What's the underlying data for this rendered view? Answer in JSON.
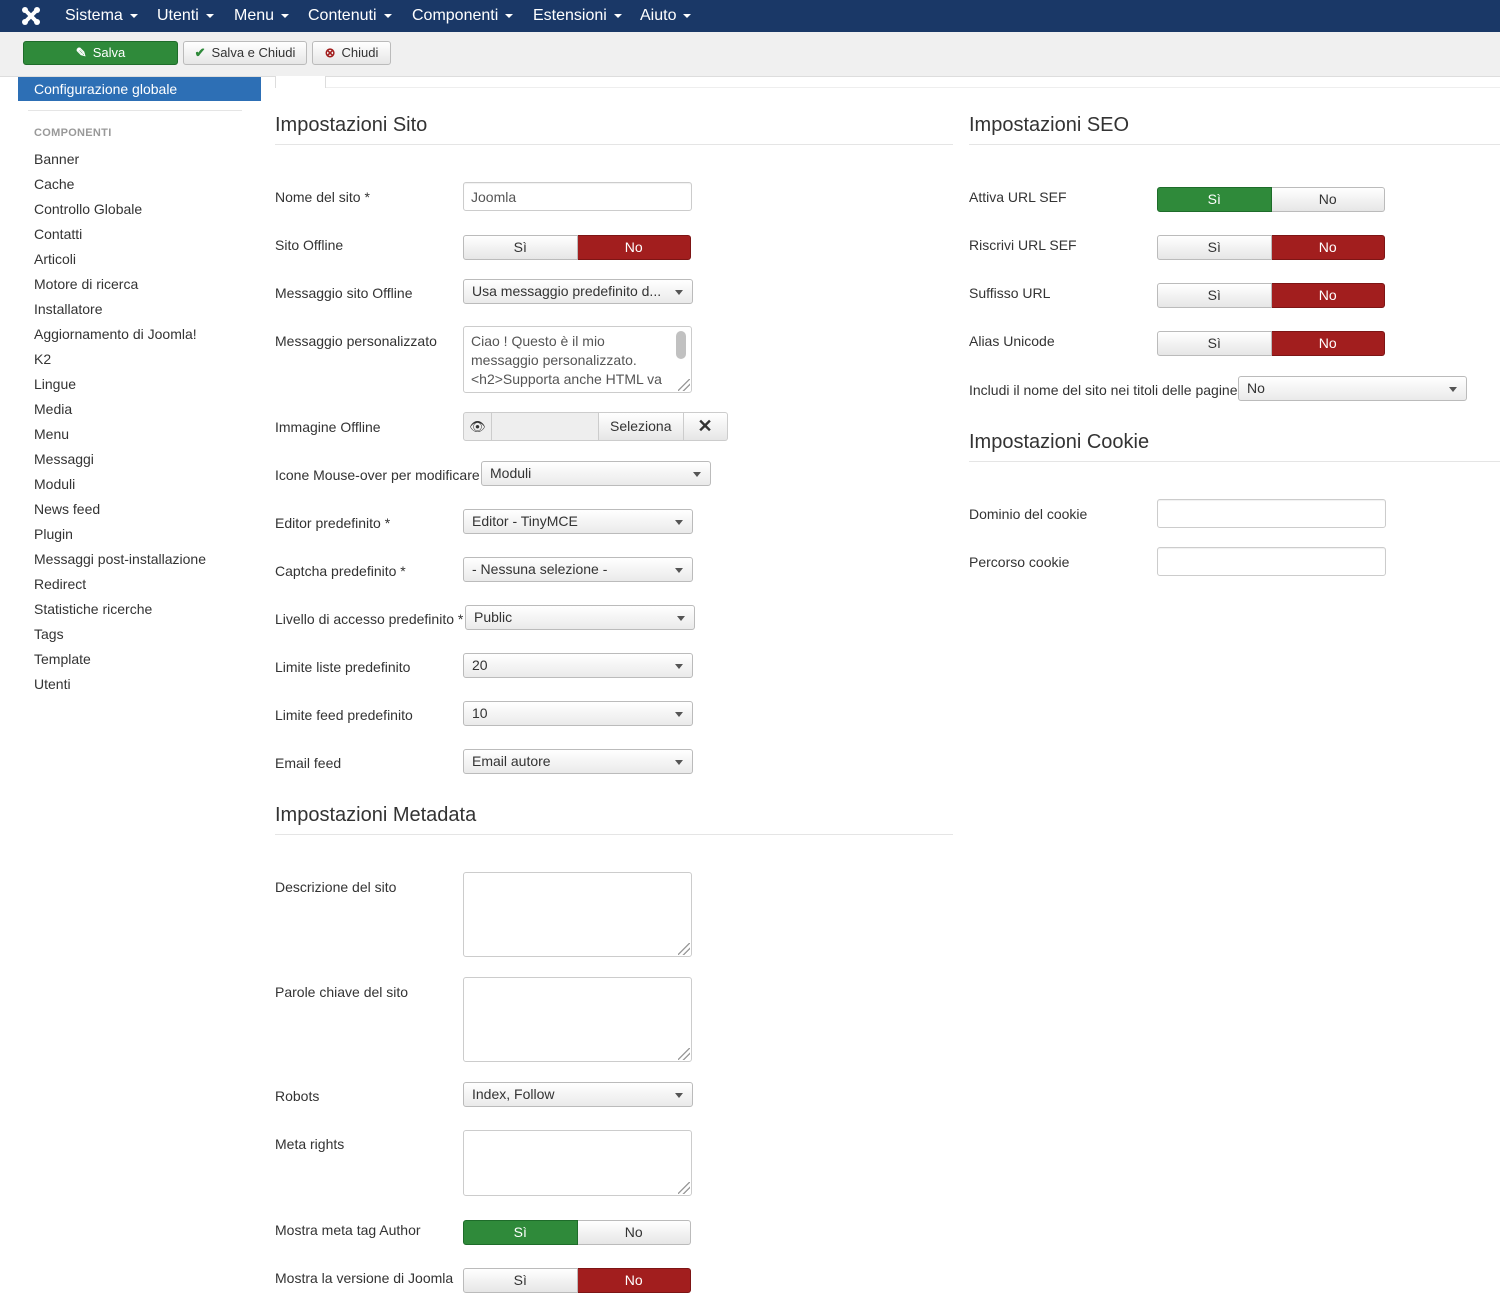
{
  "nav": {
    "logo_icon": "joomla-logo-icon",
    "menus": [
      "Sistema",
      "Utenti",
      "Menu",
      "Contenuti",
      "Componenti",
      "Estensioni",
      "Aiuto"
    ]
  },
  "toolbar": {
    "save_label": "Salva",
    "save_close_label": "Salva e Chiudi",
    "close_label": "Chiudi"
  },
  "sidebar": {
    "active": "Configurazione globale",
    "header": "COMPONENTI",
    "items": [
      "Banner",
      "Cache",
      "Controllo Globale",
      "Contatti",
      "Articoli",
      "Motore di ricerca",
      "Installatore",
      "Aggiornamento di Joomla!",
      "K2",
      "Lingue",
      "Media",
      "Menu",
      "Messaggi",
      "Moduli",
      "News feed",
      "Plugin",
      "Messaggi post-installazione",
      "Redirect",
      "Statistiche ricerche",
      "Tags",
      "Template",
      "Utenti"
    ]
  },
  "site": {
    "title": "Impostazioni Sito",
    "site_name_label": "Nome del sito *",
    "site_name_value": "Joomla",
    "offline_label": "Sito Offline",
    "offline_value": "No",
    "offline_msg_label": "Messaggio sito Offline",
    "offline_msg_value": "Usa messaggio predefinito d...",
    "custom_msg_label": "Messaggio personalizzato",
    "custom_msg_value": "Ciao ! Questo è il mio messaggio personalizzato. <h2>Supporta anche HTML va",
    "offline_image_label": "Immagine Offline",
    "select_label": "Seleziona",
    "mouseover_label": "Icone Mouse-over per modificare",
    "mouseover_value": "Moduli",
    "editor_label": "Editor predefinito *",
    "editor_value": "Editor - TinyMCE",
    "captcha_label": "Captcha predefinito *",
    "captcha_value": "- Nessuna selezione -",
    "access_label": "Livello di accesso predefinito *",
    "access_value": "Public",
    "list_limit_label": "Limite liste predefinito",
    "list_limit_value": "20",
    "feed_limit_label": "Limite feed predefinito",
    "feed_limit_value": "10",
    "feed_email_label": "Email feed",
    "feed_email_value": "Email autore"
  },
  "toggle_labels": {
    "yes": "Sì",
    "no": "No"
  },
  "metadata": {
    "title": "Impostazioni Metadata",
    "desc_label": "Descrizione del sito",
    "keywords_label": "Parole chiave del sito",
    "robots_label": "Robots",
    "robots_value": "Index, Follow",
    "rights_label": "Meta rights",
    "author_label": "Mostra meta tag Author",
    "author_value": "Sì",
    "version_label": "Mostra la versione di Joomla",
    "version_value": "No"
  },
  "seo": {
    "title": "Impostazioni SEO",
    "sef_label": "Attiva URL SEF",
    "sef_value": "Sì",
    "rewrite_label": "Riscrivi URL SEF",
    "rewrite_value": "No",
    "suffix_label": "Suffisso URL",
    "suffix_value": "No",
    "unicode_label": "Alias Unicode",
    "unicode_value": "No",
    "sitename_titles_label": "Includi il nome del sito nei titoli delle pagine",
    "sitename_titles_value": "No"
  },
  "cookie": {
    "title": "Impostazioni Cookie",
    "domain_label": "Dominio del cookie",
    "path_label": "Percorso cookie"
  },
  "colors": {
    "nav": "#1a3867",
    "active": "#2d6fb5",
    "yes": "#2f8a3a",
    "no": "#a21e1e"
  }
}
